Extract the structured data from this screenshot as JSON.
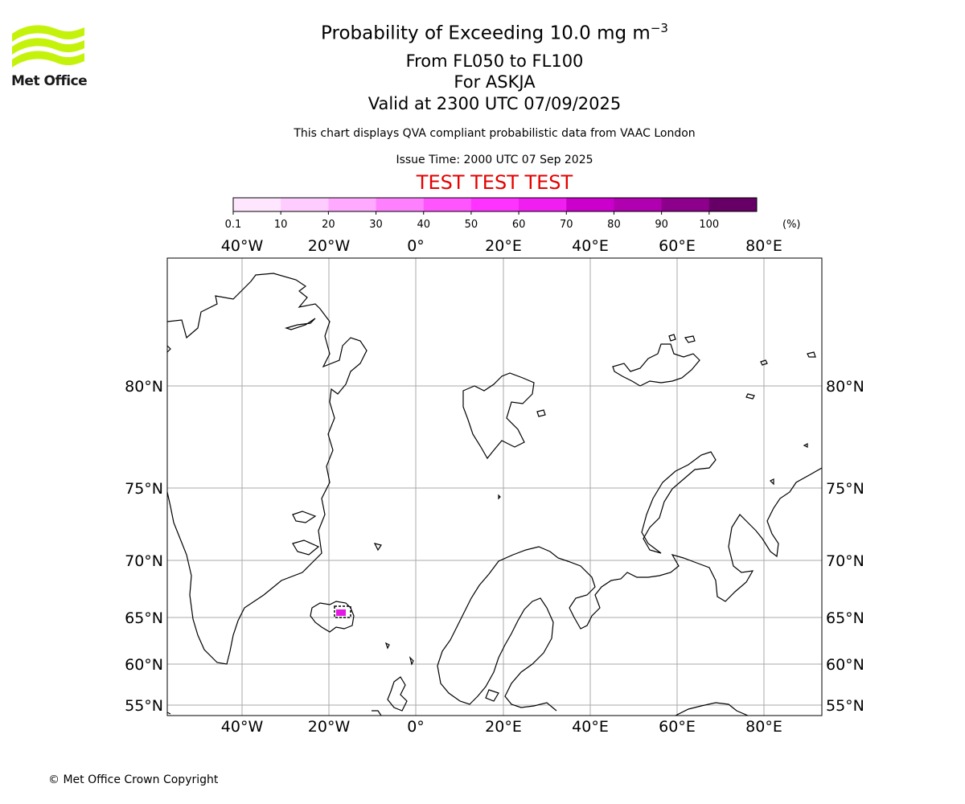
{
  "header": {
    "title_main": "Probability of Exceeding 10.0 mg m",
    "title_sup": "−3",
    "flight_levels": "From FL050 to FL100",
    "volcano": "For ASKJA",
    "valid_time": "Valid at 2300 UTC 07/09/2025",
    "description": "This chart displays QVA compliant probabilistic data from VAAC London",
    "issue_time": "Issue Time: 2000 UTC 07 Sep 2025",
    "test_banner": "TEST TEST TEST"
  },
  "logo": {
    "text": "Met Office",
    "icon": "met-office-wave-logo",
    "color": "#c5f20a"
  },
  "colorbar": {
    "ticks": [
      "0.1",
      "10",
      "20",
      "30",
      "40",
      "50",
      "60",
      "70",
      "80",
      "90",
      "100"
    ],
    "unit": "(%)",
    "colors": [
      "#ffe6ff",
      "#ffccff",
      "#ffaaff",
      "#ff80ff",
      "#ff55ff",
      "#ff33ff",
      "#f01ef0",
      "#cc00cc",
      "#b000b0",
      "#8c008c",
      "#660066"
    ]
  },
  "map": {
    "lon_labels": [
      "40°W",
      "20°W",
      "0°",
      "20°E",
      "40°E",
      "60°E",
      "80°E"
    ],
    "lat_labels": [
      "80°N",
      "75°N",
      "70°N",
      "65°N",
      "60°N",
      "55°N"
    ],
    "grid_color": "#aaaaaa",
    "ash_color": "#e000e0"
  },
  "footer": {
    "copyright": "© Met Office Crown Copyright"
  }
}
